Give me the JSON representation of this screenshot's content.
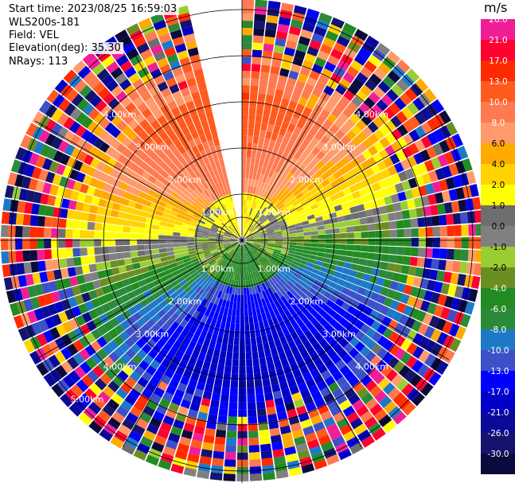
{
  "info": {
    "start_time": "Start time: 2023/08/25 16:59:03",
    "instrument": "WLS200s-181",
    "field": "Field: VEL",
    "elevation": "Elevation(deg): 35.30",
    "nrays": "NRays: 113"
  },
  "rings": {
    "labels": [
      "1.00km",
      "2.00km",
      "3.00km",
      "4.00km",
      "5.00km"
    ]
  },
  "colorbar": {
    "unit": "m/s",
    "ticks": [
      "26.0",
      "21.0",
      "17.0",
      "13.0",
      "10.0",
      "8.0",
      "6.0",
      "4.0",
      "2.0",
      "1.0",
      "0.0",
      "-1.0",
      "-2.0",
      "-4.0",
      "-6.0",
      "-8.0",
      "-10.0",
      "-13.0",
      "-17.0",
      "-21.0",
      "-26.0",
      "-30.0"
    ],
    "colors": [
      "#f01e96",
      "#ff0030",
      "#ff2a00",
      "#ff5a1e",
      "#ff7a50",
      "#ff9a6a",
      "#ffaa00",
      "#ffd200",
      "#ffff00",
      "#6e6e6e",
      "#808080",
      "#9acd32",
      "#6b8e23",
      "#228b22",
      "#2a8a3a",
      "#1e78c8",
      "#3c50c8",
      "#0000ff",
      "#0000c8",
      "#0a0a96",
      "#14146e",
      "#0a0a3c"
    ]
  }
}
